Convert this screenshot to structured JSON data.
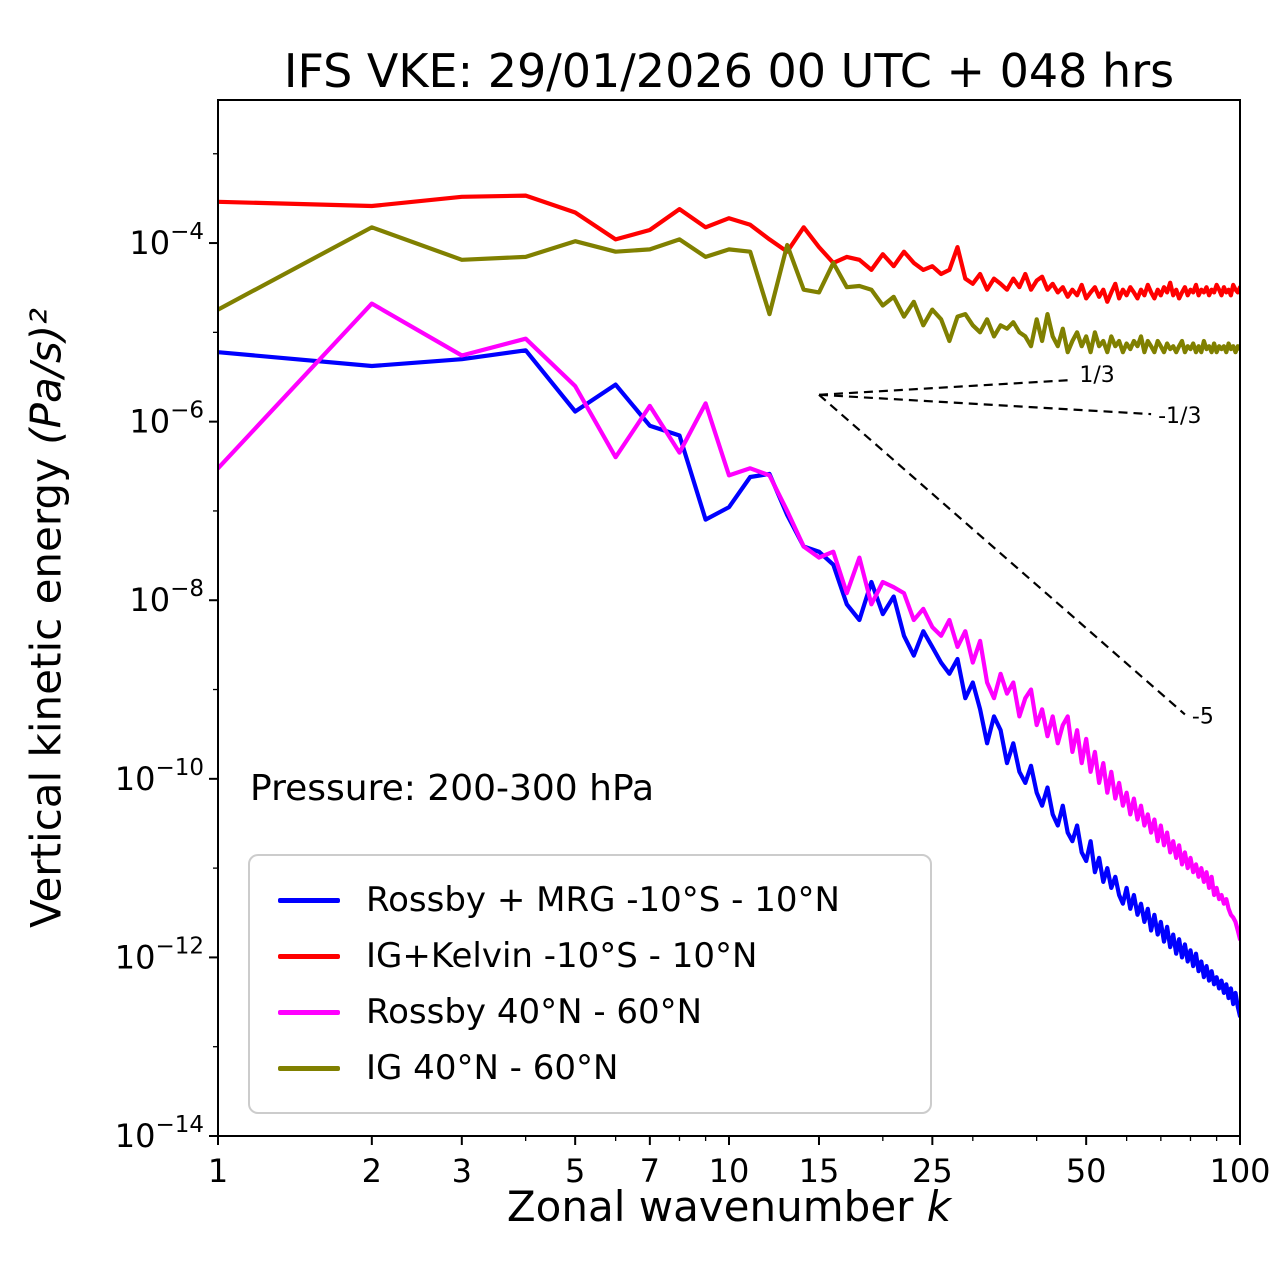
{
  "chart_data": {
    "type": "line",
    "title": "IFS VKE: 29/01/2026 00 UTC + 048 hrs",
    "xlabel": "Zonal wavenumber k",
    "xlabel_text": "Zonal wavenumber ",
    "xlabel_math": "k",
    "ylabel": "Vertical kinetic energy (Pa/s)²",
    "ylabel_text": "Vertical kinetic energy ",
    "ylabel_math": "(Pa/s)²",
    "annotation": "Pressure: 200-300 hPa",
    "x_scale": "log",
    "y_scale": "log",
    "xlim": [
      1,
      100
    ],
    "ylim": [
      1e-14,
      0.004
    ],
    "x_ticks": [
      1,
      2,
      3,
      5,
      7,
      10,
      15,
      25,
      50,
      100
    ],
    "x_tick_labels": [
      "1",
      "2",
      "3",
      "5",
      "7",
      "10",
      "15",
      "25",
      "50",
      "100"
    ],
    "y_tick_exponents": [
      -14,
      -12,
      -10,
      -8,
      -6,
      -4
    ],
    "y_tick_labels": [
      "10⁻¹⁴",
      "10⁻¹²",
      "10⁻¹⁰",
      "10⁻⁸",
      "10⁻⁶",
      "10⁻⁴"
    ],
    "grid": false,
    "legend_position": "lower left",
    "x_start": 1,
    "series": [
      {
        "name": "Rossby + MRG -10°S - 10°N",
        "color": "#0000ff",
        "values": [
          6e-06,
          4.2e-06,
          5e-06,
          6.3e-06,
          1.3e-06,
          2.6e-06,
          9e-07,
          7e-07,
          8e-08,
          1.1e-07,
          2.4e-07,
          2.6e-07,
          9e-08,
          4e-08,
          3.5e-08,
          2.5e-08,
          9e-09,
          6e-09,
          1.6e-08,
          7e-09,
          1.1e-08,
          4e-09,
          2.4e-09,
          4.5e-09,
          3e-09,
          2e-09,
          1.5e-09,
          2.2e-09,
          8e-10,
          1.2e-09,
          6e-10,
          2.5e-10,
          5e-10,
          3.5e-10,
          1.5e-10,
          2.5e-10,
          1.2e-10,
          9e-11,
          1.4e-10,
          7e-11,
          5e-11,
          8e-11,
          4e-11,
          3e-11,
          5e-11,
          2.5e-11,
          2e-11,
          3e-11,
          1.5e-11,
          1.2e-11,
          2e-11,
          9e-12,
          1.3e-11,
          7e-12,
          1e-11,
          6e-12,
          8e-12,
          5e-12,
          4e-12,
          6e-12,
          3.5e-12,
          5e-12,
          3e-12,
          4e-12,
          2.5e-12,
          3.5e-12,
          2e-12,
          3e-12,
          1.8e-12,
          2.5e-12,
          1.5e-12,
          2.2e-12,
          1.3e-12,
          1.8e-12,
          1.1e-12,
          1.6e-12,
          1e-12,
          1.4e-12,
          9e-13,
          1.2e-12,
          8e-13,
          1.1e-12,
          7e-13,
          9e-13,
          6e-13,
          8e-13,
          5.5e-13,
          7e-13,
          5e-13,
          6e-13,
          4.5e-13,
          5.5e-13,
          4e-13,
          5e-13,
          3.5e-13,
          4.5e-13,
          3e-13,
          4e-13,
          2.8e-13,
          2.2e-13
        ]
      },
      {
        "name": "IG+Kelvin -10°S - 10°N",
        "color": "#ff0000",
        "values": [
          0.00029,
          0.00026,
          0.00033,
          0.00034,
          0.00022,
          0.00011,
          0.00014,
          0.00024,
          0.00015,
          0.00019,
          0.00016,
          0.00011,
          8e-05,
          0.00015,
          9e-05,
          6e-05,
          7e-05,
          6.5e-05,
          5e-05,
          7.5e-05,
          5.5e-05,
          8e-05,
          6e-05,
          5e-05,
          5.5e-05,
          4.5e-05,
          5e-05,
          9e-05,
          4e-05,
          3.5e-05,
          4.5e-05,
          3e-05,
          4e-05,
          3.5e-05,
          3e-05,
          4e-05,
          3.2e-05,
          4.5e-05,
          3e-05,
          3.8e-05,
          4.2e-05,
          3e-05,
          3.5e-05,
          2.8e-05,
          3.2e-05,
          2.5e-05,
          3e-05,
          2.6e-05,
          3.4e-05,
          2.4e-05,
          2.8e-05,
          3.2e-05,
          2.5e-05,
          3e-05,
          2.2e-05,
          2.8e-05,
          3.5e-05,
          2.4e-05,
          3e-05,
          2.6e-05,
          3.2e-05,
          2.8e-05,
          2.4e-05,
          3e-05,
          2.6e-05,
          3.4e-05,
          2.8e-05,
          2.4e-05,
          3e-05,
          2.6e-05,
          3.2e-05,
          2.8e-05,
          3.6e-05,
          2.6e-05,
          3e-05,
          2.4e-05,
          2.8e-05,
          3.2e-05,
          2.6e-05,
          3e-05,
          2.8e-05,
          3.4e-05,
          2.6e-05,
          3e-05,
          2.8e-05,
          3.2e-05,
          2.6e-05,
          3e-05,
          2.8e-05,
          3.4e-05,
          3e-05,
          2.6e-05,
          3.2e-05,
          2.8e-05,
          3e-05,
          2.6e-05,
          3.4e-05,
          3e-05,
          2.8e-05,
          3.2e-05
        ]
      },
      {
        "name": "Rossby 40°N - 60°N",
        "color": "#ff00ff",
        "values": [
          3e-07,
          2.1e-05,
          5.5e-06,
          8.5e-06,
          2.5e-06,
          4e-07,
          1.5e-06,
          4.5e-07,
          1.6e-06,
          2.5e-07,
          3e-07,
          2.5e-07,
          1e-07,
          4e-08,
          3e-08,
          3.5e-08,
          1.2e-08,
          3e-08,
          9e-09,
          1.6e-08,
          1.4e-08,
          1.2e-08,
          6e-09,
          8e-09,
          5e-09,
          4e-09,
          6e-09,
          3e-09,
          4.5e-09,
          2e-09,
          3.5e-09,
          1.2e-09,
          8e-10,
          1.5e-09,
          9e-10,
          1.2e-09,
          5e-10,
          8e-10,
          1e-09,
          4e-10,
          6e-10,
          3e-10,
          5e-10,
          2.5e-10,
          4e-10,
          5e-10,
          2e-10,
          3.5e-10,
          1.5e-10,
          2.8e-10,
          1.2e-10,
          2e-10,
          9e-11,
          1.5e-10,
          7e-11,
          1.2e-10,
          6e-11,
          9e-11,
          5e-11,
          7e-11,
          4e-11,
          6e-11,
          3.5e-11,
          5e-11,
          3e-11,
          4e-11,
          2.5e-11,
          3.5e-11,
          2e-11,
          3e-11,
          1.8e-11,
          2.5e-11,
          1.5e-11,
          2e-11,
          1.3e-11,
          1.8e-11,
          1.1e-11,
          1.5e-11,
          1e-11,
          1.3e-11,
          9e-12,
          1.1e-11,
          8e-12,
          1e-11,
          7e-12,
          9e-12,
          6e-12,
          8e-12,
          5e-12,
          6e-12,
          4.5e-12,
          5e-12,
          4e-12,
          4.5e-12,
          3.5e-12,
          3e-12,
          2.8e-12,
          2.5e-12,
          2e-12,
          1.6e-12
        ]
      },
      {
        "name": "IG 40°N - 60°N",
        "color": "#808000",
        "values": [
          1.8e-05,
          0.00015,
          6.5e-05,
          7e-05,
          0.000105,
          8e-05,
          8.5e-05,
          0.00011,
          7e-05,
          8.5e-05,
          8e-05,
          1.6e-05,
          9.5e-05,
          3e-05,
          2.8e-05,
          6e-05,
          3.2e-05,
          3.3e-05,
          3e-05,
          2e-05,
          2.5e-05,
          1.5e-05,
          2.2e-05,
          1.2e-05,
          1.8e-05,
          1.4e-05,
          8e-06,
          1.5e-05,
          1.6e-05,
          1.2e-05,
          1e-05,
          1.4e-05,
          9e-06,
          1.2e-05,
          1.1e-05,
          1.3e-05,
          1e-05,
          9e-06,
          7e-06,
          1.4e-05,
          8e-06,
          1.6e-05,
          9e-06,
          7e-06,
          1.1e-05,
          6e-06,
          8e-06,
          1e-05,
          7e-06,
          9e-06,
          6e-06,
          1e-05,
          7e-06,
          8e-06,
          6e-06,
          9e-06,
          7e-06,
          8e-06,
          6e-06,
          7.5e-06,
          6.5e-06,
          8e-06,
          7e-06,
          9e-06,
          6e-06,
          8e-06,
          7e-06,
          6e-06,
          8e-06,
          7e-06,
          6e-06,
          7.5e-06,
          6.5e-06,
          7e-06,
          6e-06,
          7e-06,
          8e-06,
          6e-06,
          7e-06,
          6.5e-06,
          7.5e-06,
          6e-06,
          7e-06,
          6e-06,
          8e-06,
          6.5e-06,
          7e-06,
          6e-06,
          7.5e-06,
          6e-06,
          7e-06,
          6.5e-06,
          7e-06,
          6e-06,
          7.5e-06,
          6.5e-06,
          7e-06,
          6e-06,
          7e-06,
          6.5e-06
        ]
      }
    ],
    "reference_lines": [
      {
        "label": "1/3",
        "slope": 0.3333,
        "x0": 15,
        "y0": 2e-06,
        "x1": 47
      },
      {
        "label": "-1/3",
        "slope": -0.3333,
        "x0": 15,
        "y0": 2e-06,
        "x1": 67
      },
      {
        "label": "-5",
        "slope": -5,
        "x0": 15,
        "y0": 2e-06,
        "x1": 78
      }
    ]
  }
}
